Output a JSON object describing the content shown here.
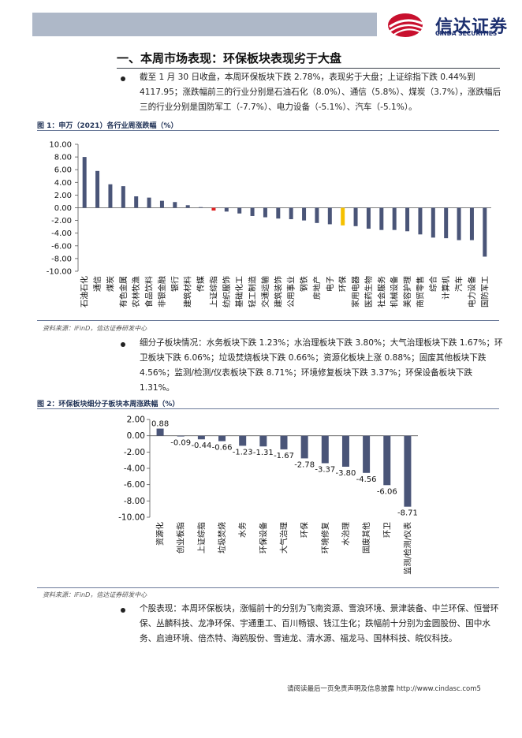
{
  "header": {
    "brand_name": "信达证券",
    "brand_sub": "CINDA SECURITIES"
  },
  "section_title": "一、本周市场表现：环保板块表现劣于大盘",
  "paragraphs": {
    "p1": "截至 1 月 30 日收盘，本周环保板块下跌 2.78%，表现劣于大盘；上证综指下跌 0.44%到 4117.95；涨跌幅前三的行业分别是石油石化（8.0%）、通信（5.8%）、煤炭（3.7%），涨跌幅后三的行业分别是国防军工（-7.7%）、电力设备（-5.1%）、汽车（-5.1%）。",
    "p2": "细分子板块情况：水务板块下跌 1.23%；水治理板块下跌 3.80%；大气治理板块下跌 1.67%；环卫板块下跌 6.06%；垃圾焚烧板块下跌 0.66%；资源化板块上涨 0.88%；固废其他板块下跌 4.56%；监测/检测/仪表板块下跌 8.71%；环境修复板块下跌 3.37%；环保设备板块下跌 1.31%。",
    "p3": "个股表现：本周环保板块，涨幅前十的分别为飞南资源、雪浪环境、景津装备、中兰环保、恒誉环保、丛麟科技、龙净环保、宇通重工、百川畅银、钱江生化；跌幅前十分别为金圆股份、国中水务、启迪环境、倍杰特、海鸥股份、雪迪龙、清水源、福龙马、国林科技、皖仪科技。"
  },
  "figure1": {
    "title": "图 1：申万（2021）各行业周涨跌幅（%）",
    "source": "资料来源：iFinD，信达证券研发中心"
  },
  "figure2": {
    "title": "图 2：环保板块细分子板块本周涨跌幅（%）",
    "source": "资料来源：iFinD，信达证券研发中心"
  },
  "footer": "请阅读最后一页免责声明及信息披露 http://www.cindasc.com5",
  "colors": {
    "bar": "#4a5578",
    "highlight_market": "#e02020",
    "highlight_env": "#f5c000"
  },
  "chart_data": [
    {
      "type": "bar",
      "title": "",
      "ylim": [
        -10,
        10
      ],
      "yticks": [
        "10.00",
        "8.00",
        "6.00",
        "4.00",
        "2.00",
        "0.00",
        "-2.00",
        "-4.00",
        "-6.00",
        "-8.00",
        "-10.00"
      ],
      "categories": [
        "石油石化",
        "通信",
        "煤炭",
        "有色金属",
        "农林牧渔",
        "食品饮料",
        "非银金融",
        "银行",
        "建筑材料",
        "传媒",
        "上证综指",
        "纺织服饰",
        "基础化工",
        "轻工制造",
        "交通运输",
        "建筑装饰",
        "公用事业",
        "钢铁",
        "房地产",
        "电子",
        "环保",
        "家用电器",
        "医药生物",
        "社会服务",
        "机械设备",
        "美容护理",
        "商贸零售",
        "综合",
        "计算机",
        "汽车",
        "电力设备",
        "国防军工"
      ],
      "values": [
        8.0,
        5.8,
        3.7,
        3.4,
        1.8,
        1.6,
        1.1,
        0.9,
        0.4,
        0.1,
        -0.44,
        -0.6,
        -0.9,
        -1.3,
        -1.5,
        -1.7,
        -1.8,
        -2.0,
        -2.4,
        -2.6,
        -2.78,
        -2.9,
        -3.3,
        -3.5,
        -3.5,
        -3.7,
        -4.2,
        -4.7,
        -4.8,
        -5.1,
        -5.1,
        -7.7
      ],
      "highlight": {
        "上证综指": "market",
        "环保": "env"
      }
    },
    {
      "type": "bar",
      "title": "",
      "ylim": [
        -10,
        2
      ],
      "yticks": [
        "2.00",
        "0.00",
        "-2.00",
        "-4.00",
        "-6.00",
        "-8.00",
        "-10.00"
      ],
      "categories": [
        "资源化",
        "创业板指",
        "上证综指",
        "垃圾焚烧",
        "水务",
        "环保设备",
        "大气治理",
        "环保",
        "环境修复",
        "水治理",
        "固废其他",
        "环卫",
        "监测/检测/仪表"
      ],
      "values": [
        0.88,
        -0.09,
        -0.44,
        -0.66,
        -1.23,
        -1.31,
        -1.67,
        -2.78,
        -3.37,
        -3.8,
        -4.56,
        -6.06,
        -8.71
      ],
      "labels": [
        "0.88",
        "-0.09",
        "-0.44",
        "-0.66",
        "-1.23",
        "-1.31",
        "-1.67",
        "-2.78",
        "-3.37",
        "-3.80",
        "-4.56",
        "-6.06",
        "-8.71"
      ]
    }
  ]
}
